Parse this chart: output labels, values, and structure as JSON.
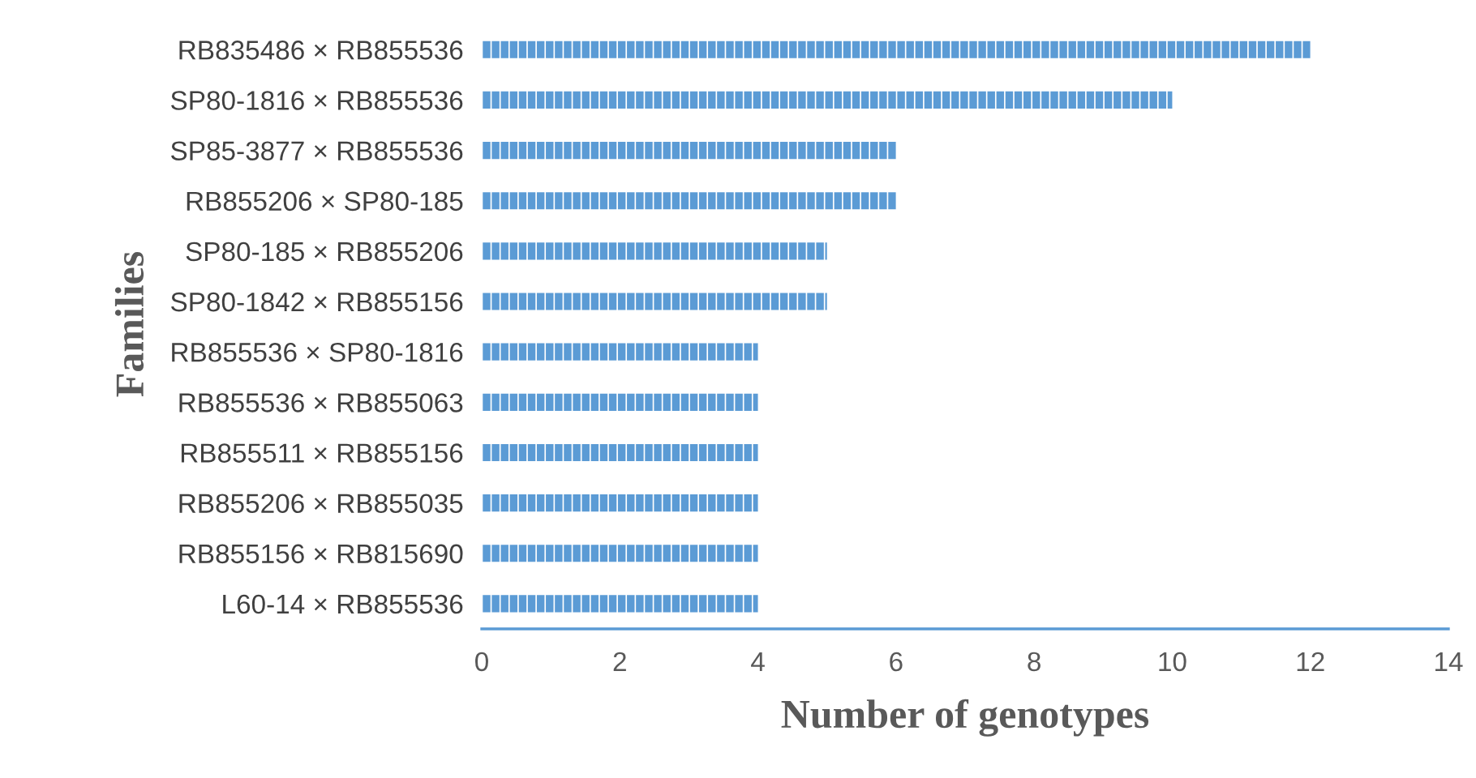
{
  "chart_data": {
    "type": "bar",
    "orientation": "horizontal",
    "xlabel": "Number of genotypes",
    "ylabel": "Families",
    "categories": [
      "RB835486 × RB855536",
      "SP80-1816 × RB855536",
      "SP85-3877 × RB855536",
      "RB855206 × SP80-185",
      "SP80-185 × RB855206",
      "SP80-1842 × RB855156",
      "RB855536 × SP80-1816",
      "RB855536 × RB855063",
      "RB855511 × RB855156",
      "RB855206 × RB855035",
      "RB855156 × RB815690",
      "L60-14 × RB855536"
    ],
    "values": [
      12,
      10,
      6,
      6,
      5,
      5,
      4,
      4,
      4,
      4,
      4,
      4
    ],
    "color": "#5b9bd5",
    "xlim": [
      0,
      14
    ],
    "xticks": [
      0,
      2,
      4,
      6,
      8,
      10,
      12,
      14
    ],
    "grid": false,
    "legend": false
  }
}
